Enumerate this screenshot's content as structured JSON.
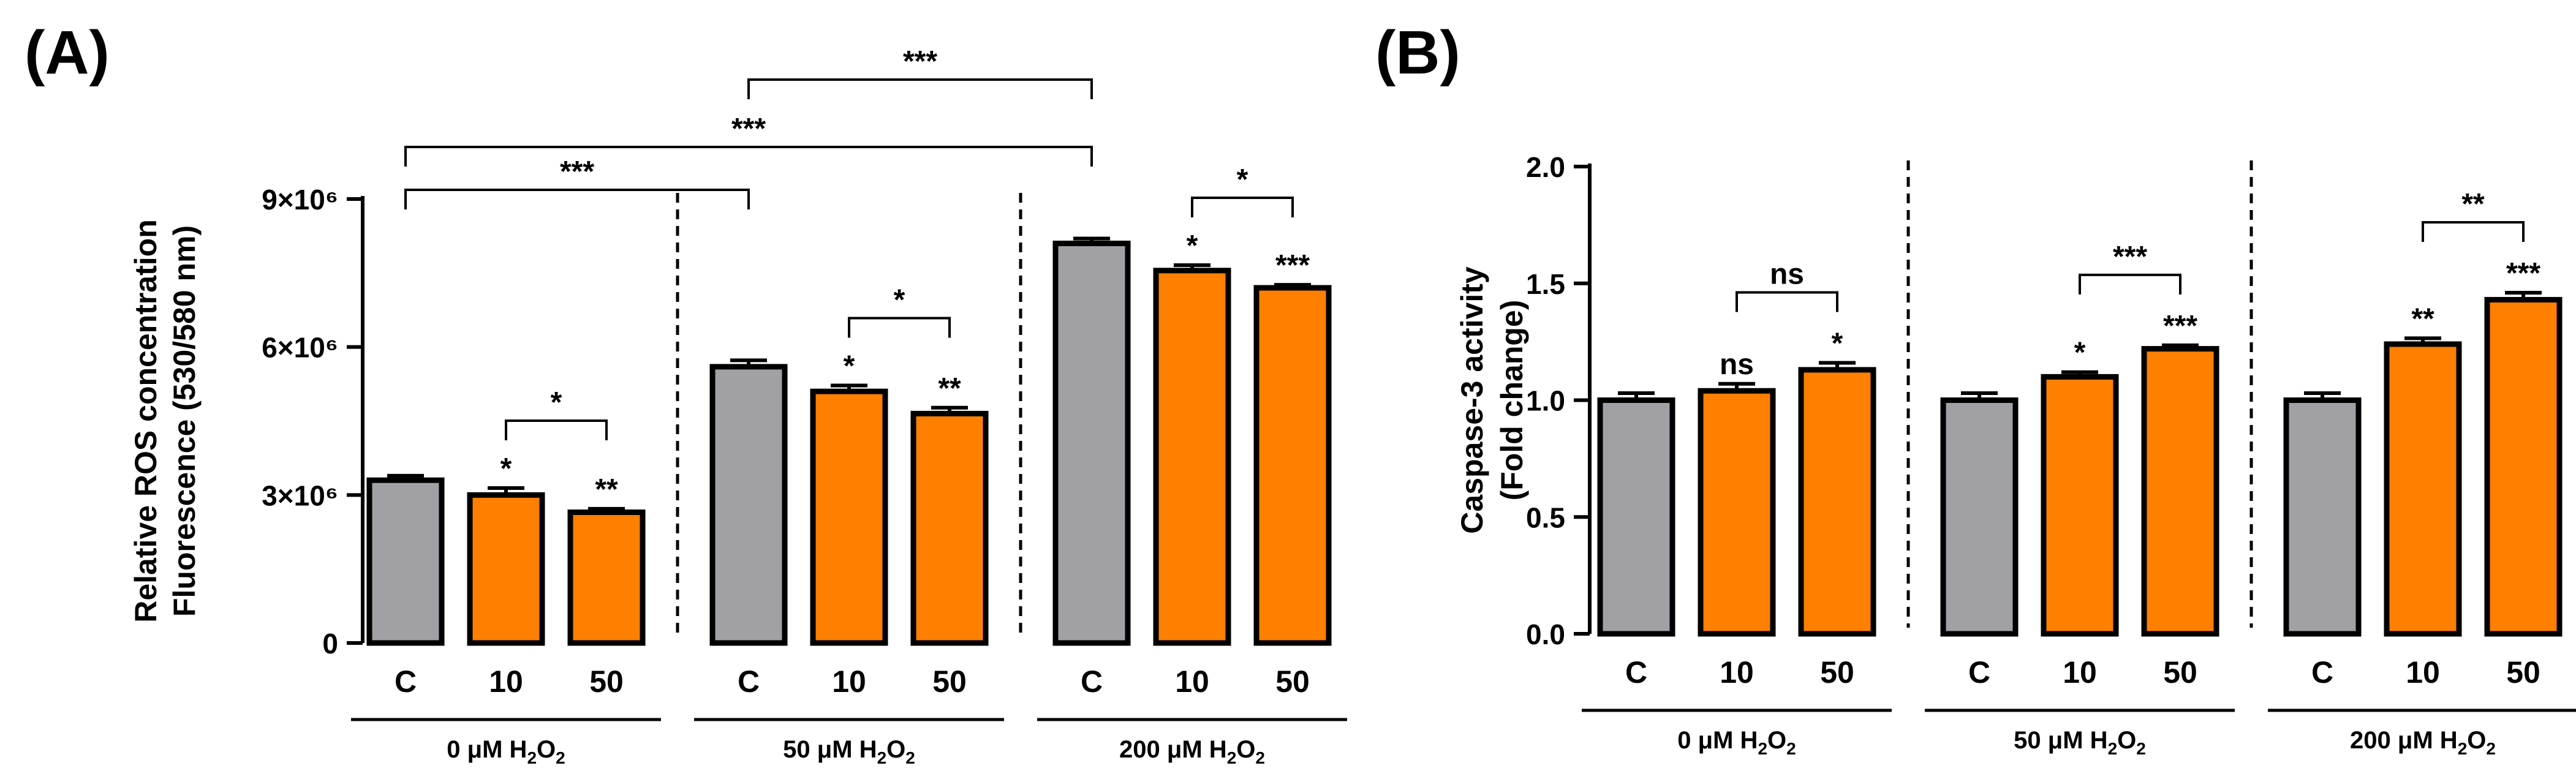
{
  "chart_data": [
    {
      "panel_label": "(A)",
      "type": "bar",
      "ylabel_line1": "Relative ROS concentration",
      "ylabel_line2": "Fluorescence (530/580 nm)",
      "ylim": [
        0,
        9000000
      ],
      "yticks": [
        {
          "value": 0,
          "label": "0"
        },
        {
          "value": 3000000,
          "label": "3×10⁶"
        },
        {
          "value": 6000000,
          "label": "6×10⁶"
        },
        {
          "value": 9000000,
          "label": "9×10⁶"
        }
      ],
      "categories": [
        "C",
        "10",
        "50",
        "C",
        "10",
        "50",
        "C",
        "10",
        "50"
      ],
      "values": [
        3300000,
        3000000,
        2650000,
        5600000,
        5100000,
        4650000,
        8100000,
        7550000,
        7200000
      ],
      "errors": [
        90000,
        140000,
        70000,
        130000,
        120000,
        120000,
        100000,
        110000,
        60000
      ],
      "colors": [
        "#a0a0a5",
        "#ff7f00",
        "#ff7f00",
        "#a0a0a5",
        "#ff7f00",
        "#ff7f00",
        "#a0a0a5",
        "#ff7f00",
        "#ff7f00"
      ],
      "bar_stars": [
        "",
        "*",
        "**",
        "",
        "*",
        "**",
        "",
        "*",
        "***"
      ],
      "groups": [
        {
          "prefix": "0 μM H",
          "sub1": "2",
          "mid": "O",
          "sub2": "2"
        },
        {
          "prefix": "50 μM H",
          "sub1": "2",
          "mid": "O",
          "sub2": "2"
        },
        {
          "prefix": "200 μM H",
          "sub1": "2",
          "mid": "O",
          "sub2": "2"
        }
      ],
      "brackets": [
        {
          "from": 1,
          "to": 2,
          "label": "*",
          "level": 0
        },
        {
          "from": 4,
          "to": 5,
          "label": "*",
          "level": 0
        },
        {
          "from": 7,
          "to": 8,
          "label": "*",
          "level": 0
        },
        {
          "from": 0,
          "to": 3,
          "label": "***",
          "level": 1
        },
        {
          "from": 0,
          "to": 6,
          "label": "***",
          "level": 2
        },
        {
          "from": 3,
          "to": 6,
          "label": "***",
          "level": 3
        }
      ]
    },
    {
      "panel_label": "(B)",
      "type": "bar",
      "ylabel_line1": "Caspase-3 activity",
      "ylabel_line2": "(Fold change)",
      "ylim": [
        0,
        2.0
      ],
      "yticks": [
        {
          "value": 0,
          "label": "0.0"
        },
        {
          "value": 0.5,
          "label": "0.5"
        },
        {
          "value": 1.0,
          "label": "1.0"
        },
        {
          "value": 1.5,
          "label": "1.5"
        },
        {
          "value": 2.0,
          "label": "2.0"
        }
      ],
      "categories": [
        "C",
        "10",
        "50",
        "C",
        "10",
        "50",
        "C",
        "10",
        "50"
      ],
      "values": [
        1.0,
        1.04,
        1.13,
        1.0,
        1.1,
        1.22,
        1.0,
        1.24,
        1.43
      ],
      "errors": [
        0.03,
        0.03,
        0.03,
        0.03,
        0.02,
        0.015,
        0.03,
        0.025,
        0.03
      ],
      "colors": [
        "#a0a0a5",
        "#ff7f00",
        "#ff7f00",
        "#a0a0a5",
        "#ff7f00",
        "#ff7f00",
        "#a0a0a5",
        "#ff7f00",
        "#ff7f00"
      ],
      "bar_stars": [
        "",
        "ns",
        "*",
        "",
        "*",
        "***",
        "",
        "**",
        "***"
      ],
      "groups": [
        {
          "prefix": "0 μM H",
          "sub1": "2",
          "mid": "O",
          "sub2": "2"
        },
        {
          "prefix": "50 μM H",
          "sub1": "2",
          "mid": "O",
          "sub2": "2"
        },
        {
          "prefix": "200 μM H",
          "sub1": "2",
          "mid": "O",
          "sub2": "2"
        }
      ],
      "brackets": [
        {
          "from": 1,
          "to": 2,
          "label": "ns",
          "level": 0
        },
        {
          "from": 4,
          "to": 5,
          "label": "***",
          "level": 0
        },
        {
          "from": 7,
          "to": 8,
          "label": "**",
          "level": 0
        }
      ]
    }
  ]
}
